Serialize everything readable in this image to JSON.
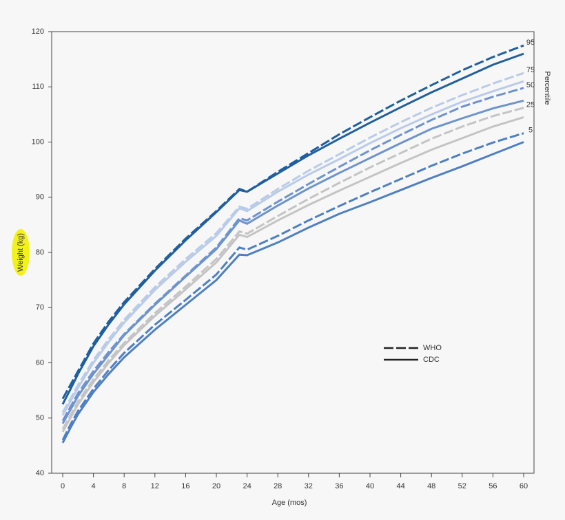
{
  "chart_data": {
    "type": "line",
    "x_label": "Age (mos)",
    "y_label": "Weight (kg)",
    "side_label": "Percentile",
    "x": [
      0,
      1,
      2,
      4,
      6,
      8,
      12,
      16,
      20,
      23,
      24,
      28,
      32,
      36,
      40,
      44,
      48,
      52,
      56,
      60
    ],
    "xlim": [
      0,
      60
    ],
    "xticks": [
      0,
      4,
      8,
      12,
      16,
      20,
      24,
      28,
      32,
      36,
      40,
      44,
      48,
      52,
      56,
      60
    ],
    "ylim": [
      40,
      120
    ],
    "yticks": [
      40,
      50,
      60,
      70,
      80,
      90,
      100,
      110,
      120
    ],
    "legend": [
      {
        "name": "WHO",
        "style": "dashed"
      },
      {
        "name": "CDC",
        "style": "solid"
      }
    ],
    "percentiles": [
      {
        "label": "95",
        "color": "#1f5f9f",
        "who": [
          53.5,
          56,
          58.5,
          63.5,
          67.5,
          71,
          77,
          82.5,
          87.5,
          91.5,
          91,
          94.6,
          98,
          101.4,
          104.5,
          107.5,
          110.3,
          113,
          115.4,
          117.5
        ],
        "cdc": [
          52.5,
          55.2,
          58,
          63,
          67,
          70.6,
          76.7,
          82.2,
          87.3,
          91.3,
          91,
          94.3,
          97.6,
          100.6,
          103.5,
          106.3,
          109,
          111.5,
          114,
          116
        ]
      },
      {
        "label": "75",
        "color": "#b9cbe8",
        "who": [
          51,
          53.5,
          56,
          60.5,
          64.3,
          67.8,
          73.7,
          78.8,
          83.5,
          88.3,
          87.9,
          91.5,
          94.8,
          97.8,
          100.8,
          103.6,
          106.2,
          108.5,
          110.6,
          112.5
        ],
        "cdc": [
          50.5,
          53,
          55.5,
          60,
          63.8,
          67.3,
          73.2,
          78.3,
          83,
          88,
          87.5,
          91,
          94.1,
          96.9,
          99.8,
          102.5,
          105,
          107.3,
          109.2,
          111
        ]
      },
      {
        "label": "50",
        "color": "#6d93cf",
        "who": [
          49.5,
          52,
          54.5,
          58.5,
          62,
          65.2,
          70.7,
          75.8,
          80.9,
          86.2,
          85.8,
          89.2,
          92.4,
          95.5,
          98.5,
          101.3,
          104,
          106.4,
          108.2,
          109.8
        ],
        "cdc": [
          49,
          51.5,
          54,
          58,
          61.5,
          65,
          70.5,
          75.6,
          80.6,
          85.8,
          85.2,
          88.5,
          91.6,
          94.4,
          97.1,
          99.8,
          102.4,
          104.3,
          106.1,
          107.5
        ]
      },
      {
        "label": "25",
        "color": "#c4c4c4",
        "who": [
          48,
          50.5,
          53,
          57,
          60.5,
          63.6,
          69,
          73.8,
          78.8,
          83.8,
          83.4,
          86.6,
          89.7,
          92.6,
          95.4,
          98,
          100.6,
          102.8,
          104.7,
          106.2
        ],
        "cdc": [
          47.5,
          50,
          52.5,
          56.5,
          60,
          63.2,
          68.5,
          73.3,
          78.2,
          83.2,
          82.8,
          85.8,
          88.6,
          91.2,
          93.7,
          96.2,
          98.6,
          100.7,
          102.8,
          104.5
        ]
      },
      {
        "label": "5",
        "color": "#4e7fc4",
        "who": [
          46,
          48.8,
          51.3,
          55.3,
          58.7,
          61.8,
          66.9,
          71.4,
          76,
          80.9,
          80.5,
          83,
          85.8,
          88.4,
          90.9,
          93.3,
          95.7,
          97.9,
          99.9,
          101.6
        ],
        "cdc": [
          45.5,
          48.2,
          50.7,
          54.7,
          58,
          61,
          66,
          70.5,
          75,
          79.6,
          79.5,
          81.8,
          84.5,
          87,
          89.1,
          91.3,
          93.5,
          95.6,
          97.8,
          100
        ]
      }
    ]
  }
}
